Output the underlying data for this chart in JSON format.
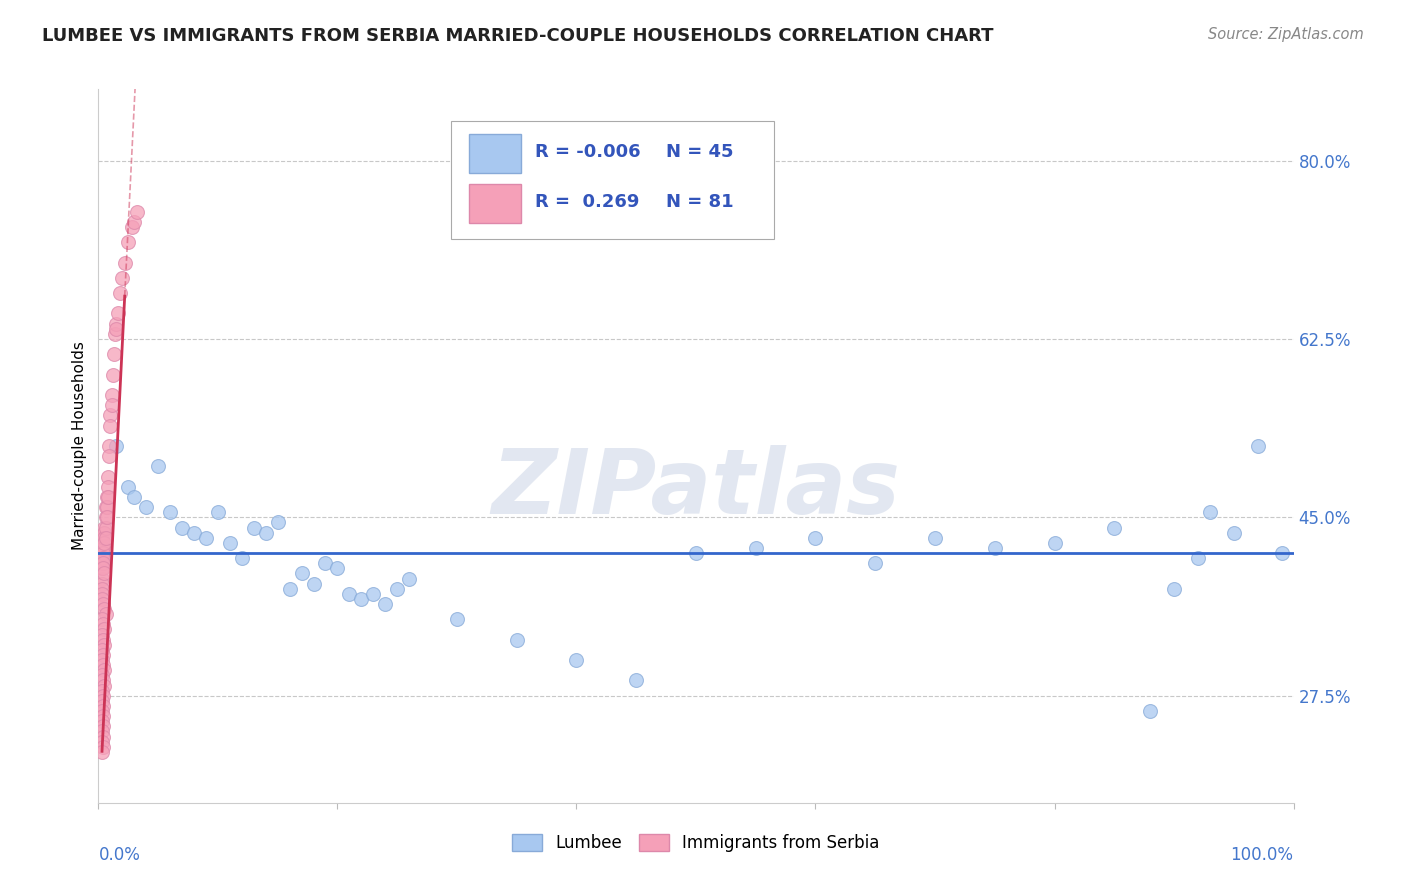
{
  "title": "LUMBEE VS IMMIGRANTS FROM SERBIA MARRIED-COUPLE HOUSEHOLDS CORRELATION CHART",
  "source": "Source: ZipAtlas.com",
  "ylabel": "Married-couple Households",
  "xlim": [
    0.0,
    100.0
  ],
  "ylim": [
    17.0,
    87.0
  ],
  "yticks": [
    27.5,
    45.0,
    62.5,
    80.0
  ],
  "ytick_labels": [
    "27.5%",
    "45.0%",
    "62.5%",
    "80.0%"
  ],
  "legend_blue_r": "-0.006",
  "legend_blue_n": "45",
  "legend_pink_r": "0.269",
  "legend_pink_n": "81",
  "blue_color": "#a8c8f0",
  "blue_edge": "#88aad8",
  "pink_color": "#f5a0b8",
  "pink_edge": "#dd88aa",
  "trend_blue_color": "#3366cc",
  "trend_pink_color": "#cc3355",
  "lumbee_x": [
    1.5,
    2.5,
    3.0,
    4.0,
    5.0,
    6.0,
    7.0,
    8.0,
    9.0,
    10.0,
    11.0,
    12.0,
    13.0,
    14.0,
    15.0,
    16.0,
    17.0,
    18.0,
    19.0,
    20.0,
    21.0,
    22.0,
    23.0,
    24.0,
    25.0,
    26.0,
    30.0,
    35.0,
    40.0,
    45.0,
    50.0,
    55.0,
    60.0,
    65.0,
    70.0,
    75.0,
    80.0,
    85.0,
    88.0,
    90.0,
    92.0,
    93.0,
    95.0,
    97.0,
    99.0
  ],
  "lumbee_y": [
    52.0,
    48.0,
    47.0,
    46.0,
    50.0,
    45.5,
    44.0,
    43.5,
    43.0,
    45.5,
    42.5,
    41.0,
    44.0,
    43.5,
    44.5,
    38.0,
    39.5,
    38.5,
    40.5,
    40.0,
    37.5,
    37.0,
    37.5,
    36.5,
    38.0,
    39.0,
    35.0,
    33.0,
    31.0,
    29.0,
    41.5,
    42.0,
    43.0,
    40.5,
    43.0,
    42.0,
    42.5,
    44.0,
    26.0,
    38.0,
    41.0,
    45.5,
    43.5,
    52.0,
    41.5
  ],
  "serbia_x": [
    0.3,
    0.3,
    0.3,
    0.3,
    0.3,
    0.3,
    0.3,
    0.3,
    0.3,
    0.3,
    0.4,
    0.4,
    0.4,
    0.4,
    0.4,
    0.4,
    0.5,
    0.5,
    0.5,
    0.5,
    0.5,
    0.6,
    0.6,
    0.6,
    0.6,
    0.7,
    0.7,
    0.7,
    0.8,
    0.8,
    0.8,
    0.9,
    0.9,
    1.0,
    1.0,
    1.1,
    1.1,
    1.2,
    1.3,
    1.4,
    1.5,
    1.5,
    1.6,
    1.8,
    2.0,
    2.2,
    2.5,
    2.8,
    3.0,
    3.2,
    0.3,
    0.4,
    0.5,
    0.6,
    0.3,
    0.4,
    0.5,
    0.3,
    0.4,
    0.5,
    0.3,
    0.4,
    0.3,
    0.4,
    0.5,
    0.3,
    0.4,
    0.5,
    0.3,
    0.4,
    0.3,
    0.4,
    0.3,
    0.4,
    0.3,
    0.4,
    0.3,
    0.4,
    0.3,
    0.4,
    0.3
  ],
  "serbia_y": [
    39.0,
    38.5,
    38.0,
    37.5,
    42.0,
    41.5,
    41.0,
    40.5,
    40.0,
    43.0,
    42.5,
    42.0,
    41.5,
    41.0,
    40.5,
    40.0,
    44.0,
    43.5,
    43.0,
    42.5,
    39.5,
    46.0,
    45.0,
    44.0,
    43.0,
    47.0,
    46.0,
    45.0,
    49.0,
    48.0,
    47.0,
    52.0,
    51.0,
    55.0,
    54.0,
    57.0,
    56.0,
    59.0,
    61.0,
    63.0,
    64.0,
    63.5,
    65.0,
    67.0,
    68.5,
    70.0,
    72.0,
    73.5,
    74.0,
    75.0,
    37.0,
    36.5,
    36.0,
    35.5,
    35.0,
    34.5,
    34.0,
    33.5,
    33.0,
    32.5,
    32.0,
    31.5,
    31.0,
    30.5,
    30.0,
    29.5,
    29.0,
    28.5,
    28.0,
    27.5,
    27.0,
    26.5,
    26.0,
    25.5,
    25.0,
    24.5,
    24.0,
    23.5,
    23.0,
    22.5,
    22.0
  ]
}
